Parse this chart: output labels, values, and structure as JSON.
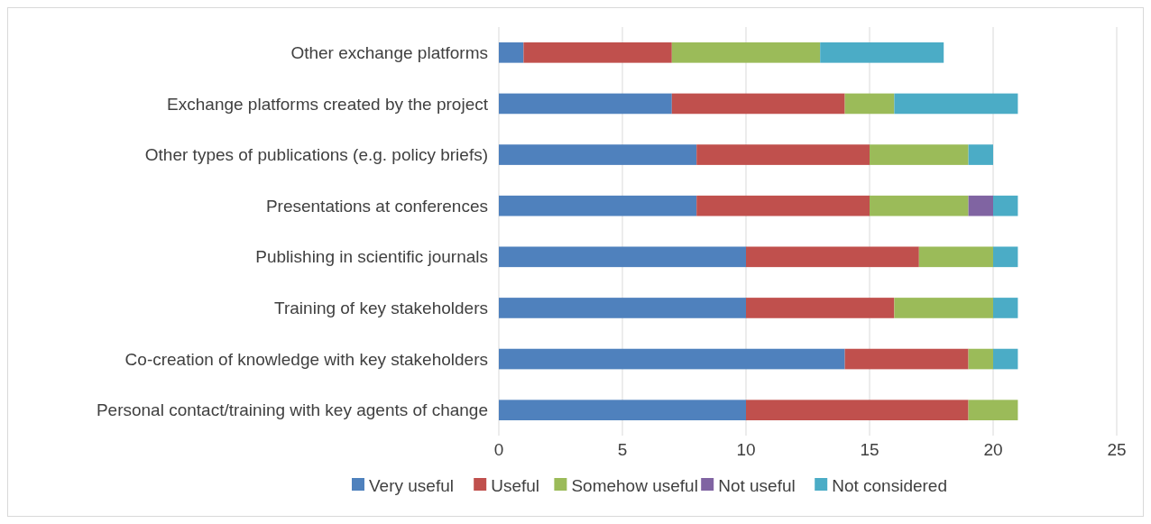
{
  "chart_data": {
    "type": "bar",
    "orientation": "horizontal",
    "stacked": true,
    "categories": [
      "Other exchange platforms",
      "Exchange platforms created by the project",
      "Other types of publications (e.g. policy briefs)",
      "Presentations at conferences",
      "Publishing in scientific journals",
      "Training of key stakeholders",
      "Co-creation of knowledge with key stakeholders",
      "Personal contact/training with key agents of change"
    ],
    "series": [
      {
        "name": "Very useful",
        "color": "#4f81bd",
        "values": [
          1,
          7,
          8,
          8,
          10,
          10,
          14,
          10
        ]
      },
      {
        "name": "Useful",
        "color": "#c0504d",
        "values": [
          6,
          7,
          7,
          7,
          7,
          6,
          5,
          9
        ]
      },
      {
        "name": "Somehow useful",
        "color": "#9bbb59",
        "values": [
          6,
          2,
          4,
          4,
          3,
          4,
          1,
          2
        ]
      },
      {
        "name": "Not useful",
        "color": "#8064a2",
        "values": [
          0,
          0,
          0,
          1,
          0,
          0,
          0,
          0
        ]
      },
      {
        "name": "Not considered",
        "color": "#4bacc6",
        "values": [
          5,
          5,
          1,
          1,
          1,
          1,
          1,
          0
        ]
      }
    ],
    "xlim": [
      0,
      25
    ],
    "xticks": [
      0,
      5,
      10,
      15,
      20,
      25
    ],
    "grid": "x",
    "legend": "bottom"
  }
}
